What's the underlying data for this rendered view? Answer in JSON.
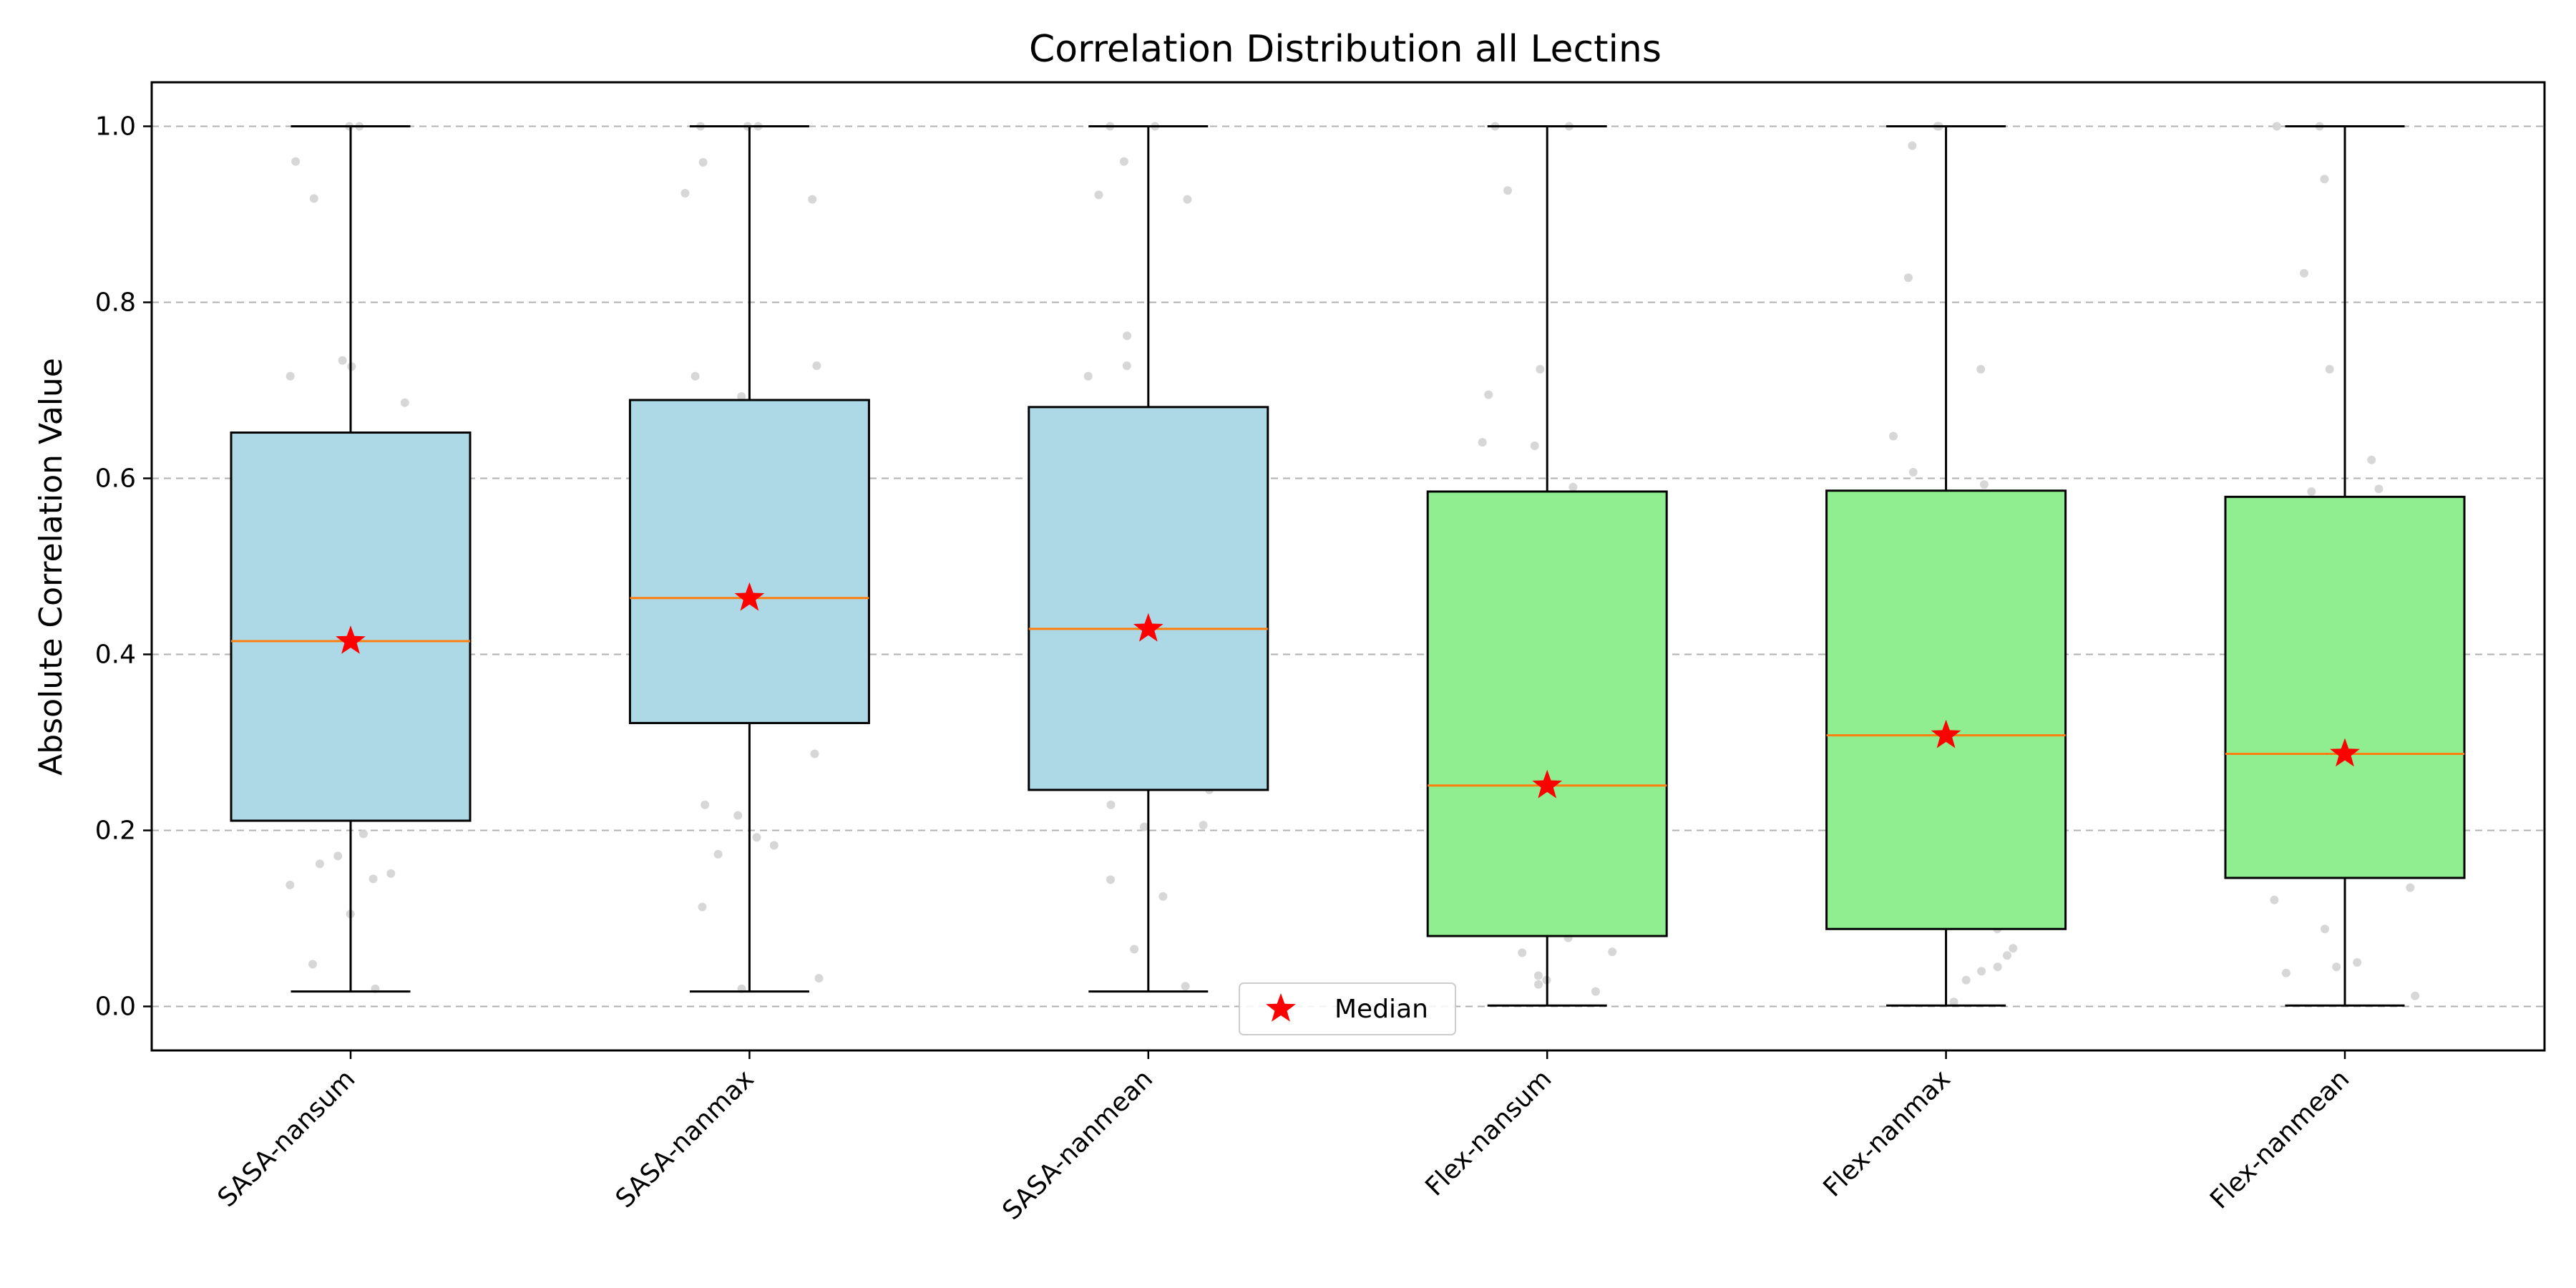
{
  "chart_data": {
    "type": "box",
    "title": "Correlation Distribution all Lectins",
    "xlabel": "",
    "ylabel": "Absolute Correlation Value",
    "ylim": [
      -0.05,
      1.05
    ],
    "yticks": [
      0.0,
      0.2,
      0.4,
      0.6,
      0.8,
      1.0
    ],
    "ytick_labels": [
      "0.0",
      "0.2",
      "0.4",
      "0.6",
      "0.8",
      "1.0"
    ],
    "grid": "y-dashed",
    "legend": {
      "entries": [
        "Median"
      ],
      "placement": "lower-center"
    },
    "colors": {
      "SASA": "#add8e6",
      "Flex": "#90ee90",
      "median_line": "#ff7f0e",
      "median_marker": "#ff0000",
      "points": "#d3d3d3"
    },
    "categories": [
      "SASA-nansum",
      "SASA-nanmax",
      "SASA-nanmean",
      "Flex-nansum",
      "Flex-nanmax",
      "Flex-nanmean"
    ],
    "boxes": [
      {
        "category": "SASA-nansum",
        "group": "SASA",
        "whislo": 0.017,
        "q1": 0.211,
        "median": 0.415,
        "q3": 0.652,
        "whishi": 1.0,
        "points": [
          1.0,
          1.0,
          0.96,
          0.918,
          0.734,
          0.727,
          0.716,
          0.686,
          0.196,
          0.171,
          0.162,
          0.151,
          0.145,
          0.138,
          0.105,
          0.048,
          0.02
        ]
      },
      {
        "category": "SASA-nanmax",
        "group": "SASA",
        "whislo": 0.017,
        "q1": 0.322,
        "median": 0.464,
        "q3": 0.689,
        "whishi": 1.0,
        "points": [
          1.0,
          1.0,
          1.0,
          0.959,
          0.924,
          0.917,
          0.728,
          0.716,
          0.693,
          0.287,
          0.229,
          0.217,
          0.192,
          0.183,
          0.173,
          0.113,
          0.032,
          0.02
        ]
      },
      {
        "category": "SASA-nanmean",
        "group": "SASA",
        "whislo": 0.017,
        "q1": 0.246,
        "median": 0.429,
        "q3": 0.681,
        "whishi": 1.0,
        "points": [
          1.0,
          1.0,
          0.96,
          0.922,
          0.917,
          0.762,
          0.728,
          0.716,
          0.246,
          0.229,
          0.206,
          0.204,
          0.144,
          0.125,
          0.065,
          0.023
        ]
      },
      {
        "category": "Flex-nansum",
        "group": "Flex",
        "whislo": 0.001,
        "q1": 0.08,
        "median": 0.251,
        "q3": 0.585,
        "whishi": 1.0,
        "points": [
          1.0,
          1.0,
          0.927,
          0.724,
          0.695,
          0.641,
          0.637,
          0.59,
          0.078,
          0.062,
          0.061,
          0.035,
          0.03,
          0.025,
          0.017
        ]
      },
      {
        "category": "Flex-nanmax",
        "group": "Flex",
        "whislo": 0.001,
        "q1": 0.088,
        "median": 0.308,
        "q3": 0.586,
        "whishi": 1.0,
        "points": [
          1.0,
          1.0,
          0.978,
          0.828,
          0.724,
          0.648,
          0.607,
          0.593,
          0.088,
          0.066,
          0.058,
          0.045,
          0.04,
          0.03,
          0.005
        ]
      },
      {
        "category": "Flex-nanmean",
        "group": "Flex",
        "whislo": 0.001,
        "q1": 0.146,
        "median": 0.287,
        "q3": 0.579,
        "whishi": 1.0,
        "points": [
          1.0,
          1.0,
          0.94,
          0.833,
          0.724,
          0.621,
          0.588,
          0.585,
          0.135,
          0.121,
          0.088,
          0.05,
          0.045,
          0.038,
          0.012
        ]
      }
    ]
  }
}
